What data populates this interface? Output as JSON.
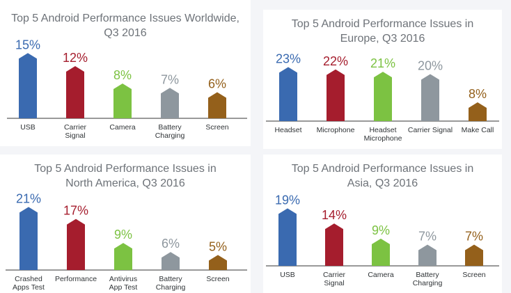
{
  "palette": {
    "blue": "#3a6ab0",
    "red": "#a51d2d",
    "green": "#7cc242",
    "gray": "#8e979e",
    "brown": "#94601b"
  },
  "chart_data": [
    {
      "type": "bar",
      "title": "Top 5 Android Performance Issues Worldwide,\nQ3 2016",
      "categories": [
        "USB",
        "Carrier\nSignal",
        "Camera",
        "Battery\nCharging",
        "Screen"
      ],
      "values": [
        15,
        12,
        8,
        7,
        6
      ],
      "data_labels": [
        "15%",
        "12%",
        "8%",
        "7%",
        "6%"
      ],
      "colors": [
        "blue",
        "red",
        "green",
        "gray",
        "brown"
      ],
      "ylim": [
        0,
        16
      ]
    },
    {
      "type": "bar",
      "title": "Top 5 Android Performance Issues in\nEurope, Q3 2016",
      "categories": [
        "Headset",
        "Microphone",
        "Headset\nMicrophone",
        "Carrier Signal",
        "Make Call"
      ],
      "values": [
        23,
        22,
        21,
        20,
        8
      ],
      "data_labels": [
        "23%",
        "22%",
        "21%",
        "20%",
        "8%"
      ],
      "colors": [
        "blue",
        "red",
        "green",
        "gray",
        "brown"
      ],
      "ylim": [
        0,
        24
      ]
    },
    {
      "type": "bar",
      "title": "Top 5 Android Performance Issues in\nNorth America, Q3 2016",
      "categories": [
        "Crashed\nApps Test",
        "Performance",
        "Antivirus\nApp Test",
        "Battery\nCharging",
        "Screen"
      ],
      "values": [
        21,
        17,
        9,
        6,
        5
      ],
      "data_labels": [
        "21%",
        "17%",
        "9%",
        "6%",
        "5%"
      ],
      "colors": [
        "blue",
        "red",
        "green",
        "gray",
        "brown"
      ],
      "ylim": [
        0,
        22
      ]
    },
    {
      "type": "bar",
      "title": "Top 5 Android Performance Issues in\nAsia, Q3 2016",
      "categories": [
        "USB",
        "Carrier\nSignal",
        "Camera",
        "Battery\nCharging",
        "Screen"
      ],
      "values": [
        19,
        14,
        9,
        7,
        7
      ],
      "data_labels": [
        "19%",
        "14%",
        "9%",
        "7%",
        "7%"
      ],
      "colors": [
        "blue",
        "red",
        "green",
        "gray",
        "brown"
      ],
      "ylim": [
        0,
        20
      ]
    }
  ]
}
